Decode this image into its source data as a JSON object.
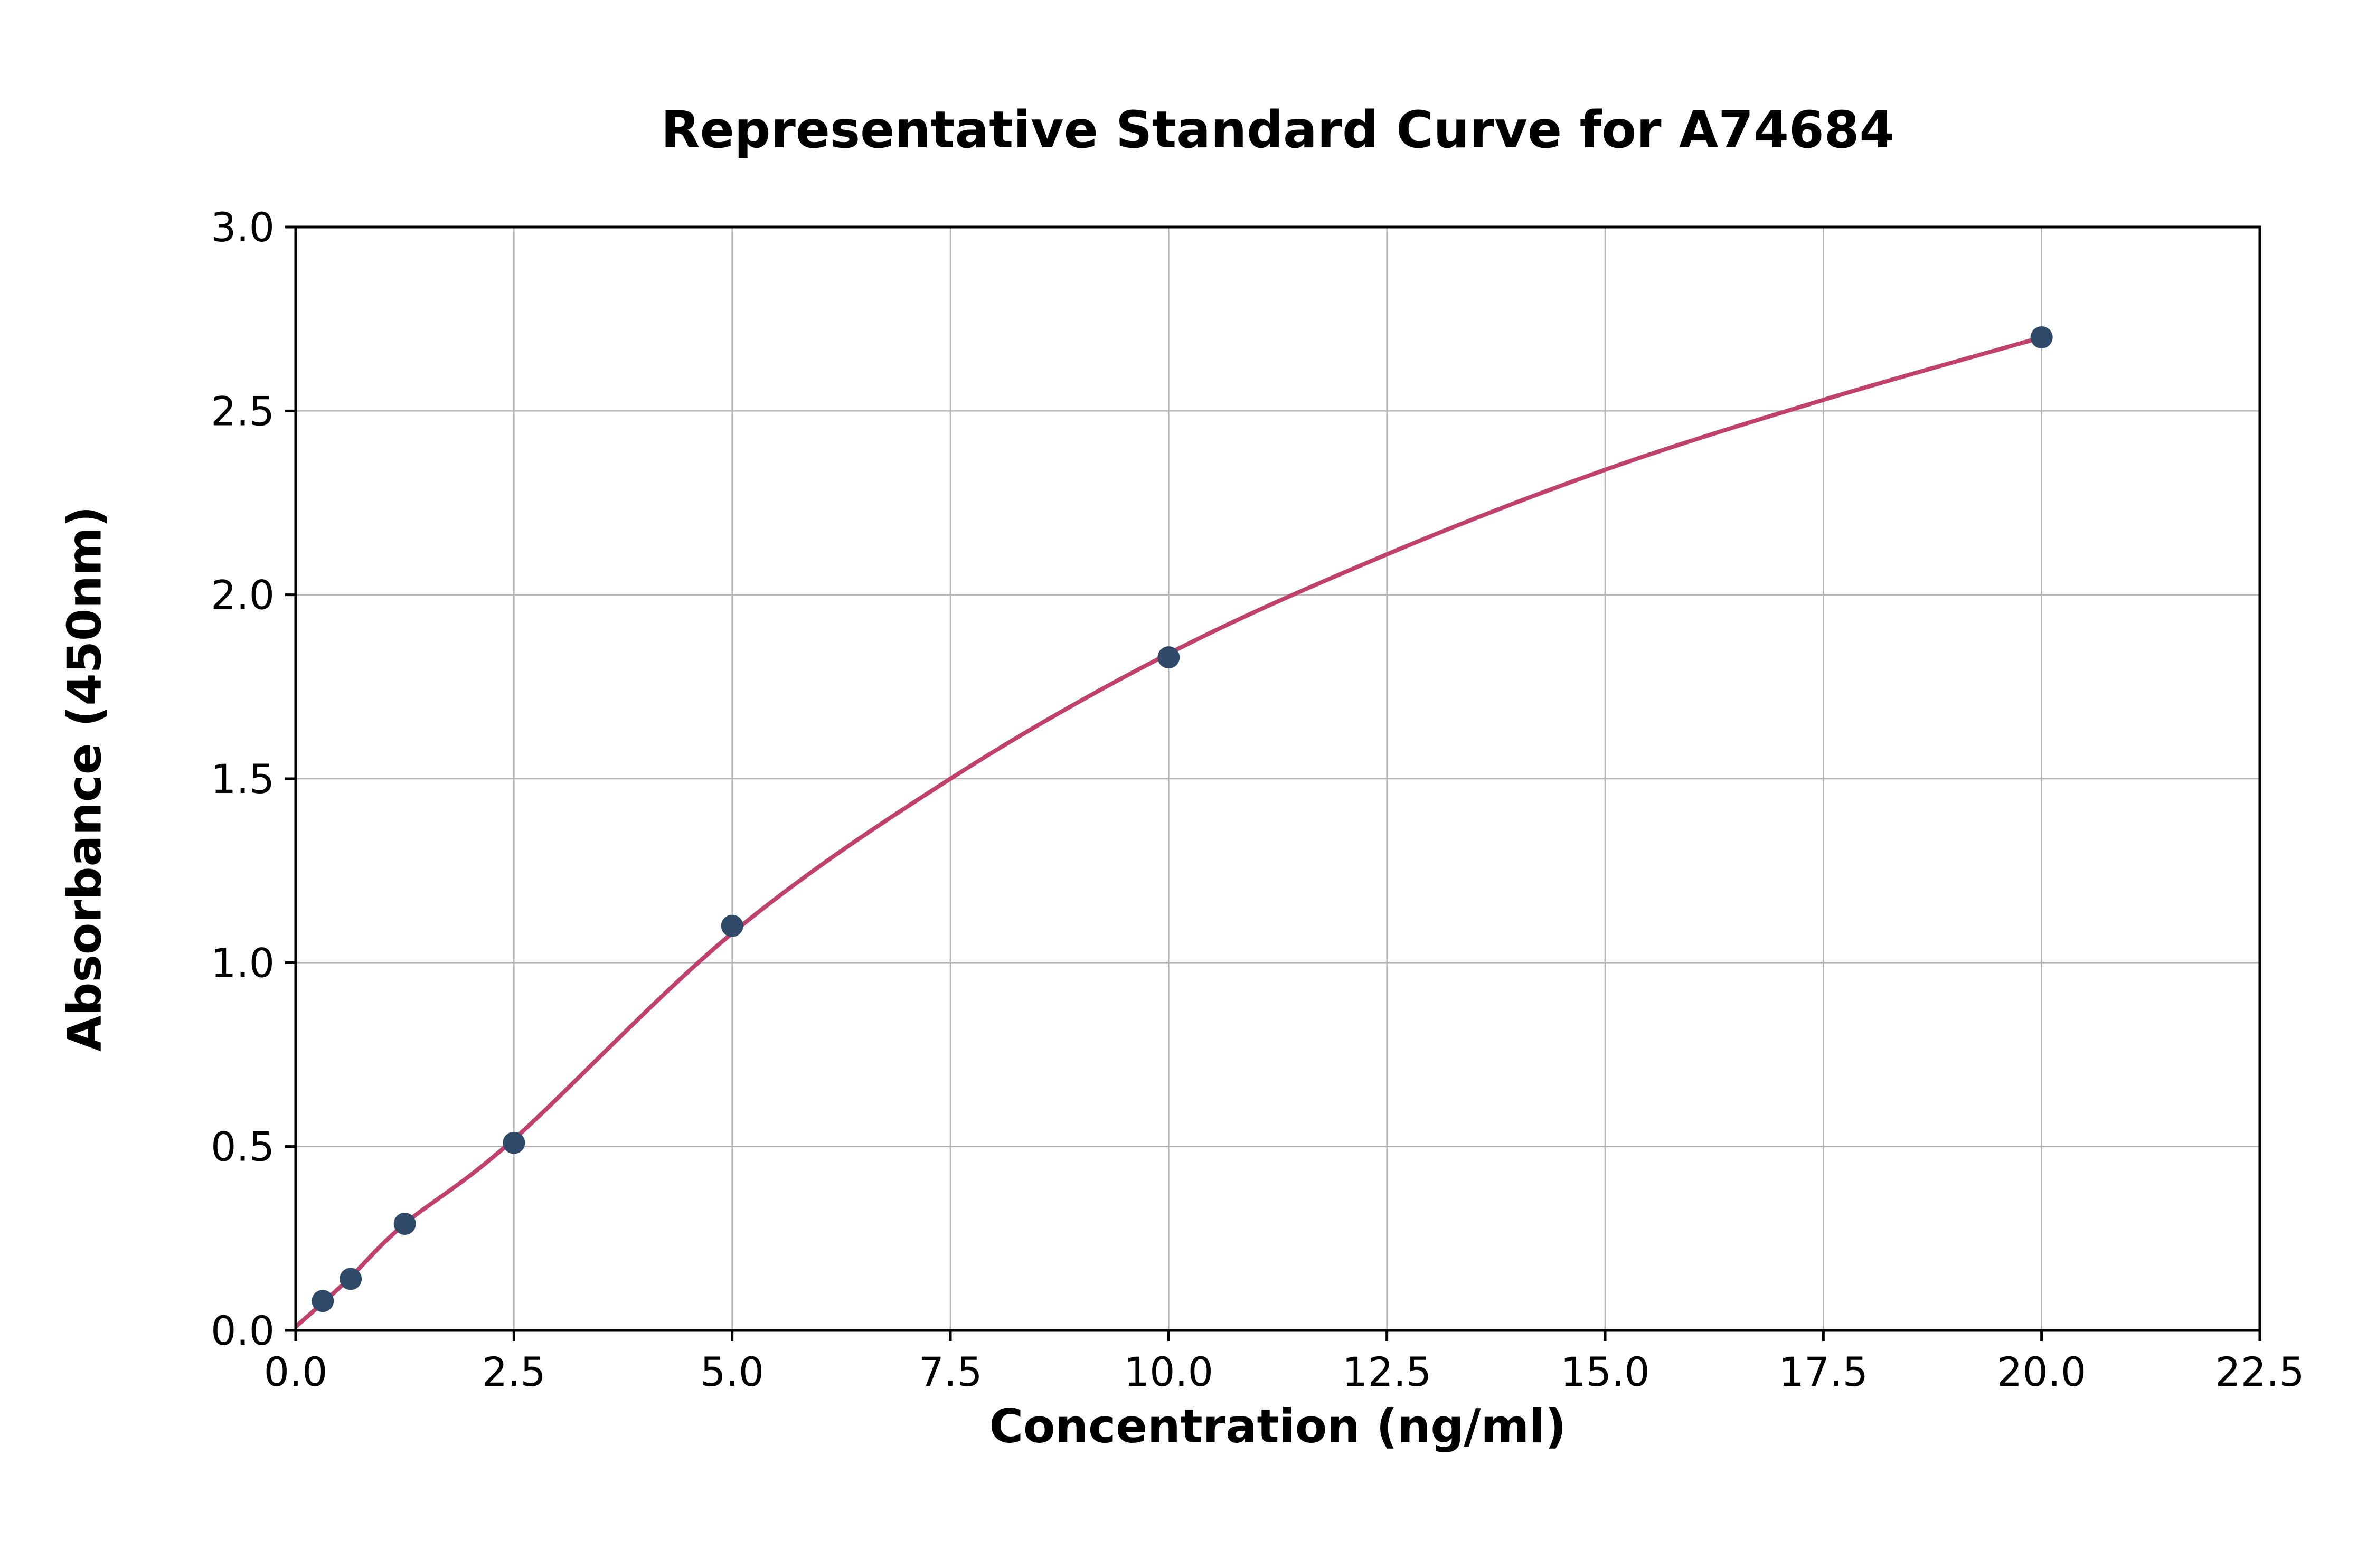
{
  "chart_data": {
    "type": "scatter",
    "title": "Representative Standard Curve for A74684",
    "xlabel": "Concentration (ng/ml)",
    "ylabel": "Absorbance (450nm)",
    "xlim": [
      0,
      22.5
    ],
    "ylim": [
      0,
      3.0
    ],
    "grid": true,
    "legend": "none",
    "x_ticks": [
      0.0,
      2.5,
      5.0,
      7.5,
      10.0,
      12.5,
      15.0,
      17.5,
      20.0,
      22.5
    ],
    "x_tick_labels": [
      "0.0",
      "2.5",
      "5.0",
      "7.5",
      "10.0",
      "12.5",
      "15.0",
      "17.5",
      "20.0",
      "22.5"
    ],
    "y_ticks": [
      0.0,
      0.5,
      1.0,
      1.5,
      2.0,
      2.5,
      3.0
    ],
    "y_tick_labels": [
      "0.0",
      "0.5",
      "1.0",
      "1.5",
      "2.0",
      "2.5",
      "3.0"
    ],
    "points": [
      {
        "x": 0.31,
        "y": 0.08
      },
      {
        "x": 0.63,
        "y": 0.14
      },
      {
        "x": 1.25,
        "y": 0.29
      },
      {
        "x": 2.5,
        "y": 0.51
      },
      {
        "x": 5.0,
        "y": 1.1
      },
      {
        "x": 10.0,
        "y": 1.83
      },
      {
        "x": 20.0,
        "y": 2.7
      }
    ],
    "curve": [
      {
        "x": 0,
        "y": 0.01
      },
      {
        "x": 0.31,
        "y": 0.075
      },
      {
        "x": 0.63,
        "y": 0.145
      },
      {
        "x": 1.25,
        "y": 0.29
      },
      {
        "x": 2.5,
        "y": 0.52
      },
      {
        "x": 5.0,
        "y": 1.08
      },
      {
        "x": 7.5,
        "y": 1.5
      },
      {
        "x": 10.0,
        "y": 1.84
      },
      {
        "x": 12.5,
        "y": 2.11
      },
      {
        "x": 15.0,
        "y": 2.34
      },
      {
        "x": 17.5,
        "y": 2.53
      },
      {
        "x": 20.0,
        "y": 2.7
      }
    ],
    "colors": {
      "point": "#2e4a68",
      "curve": "#c0426c",
      "grid": "#b3b3b3",
      "axis": "#000000",
      "background": "#ffffff"
    }
  }
}
